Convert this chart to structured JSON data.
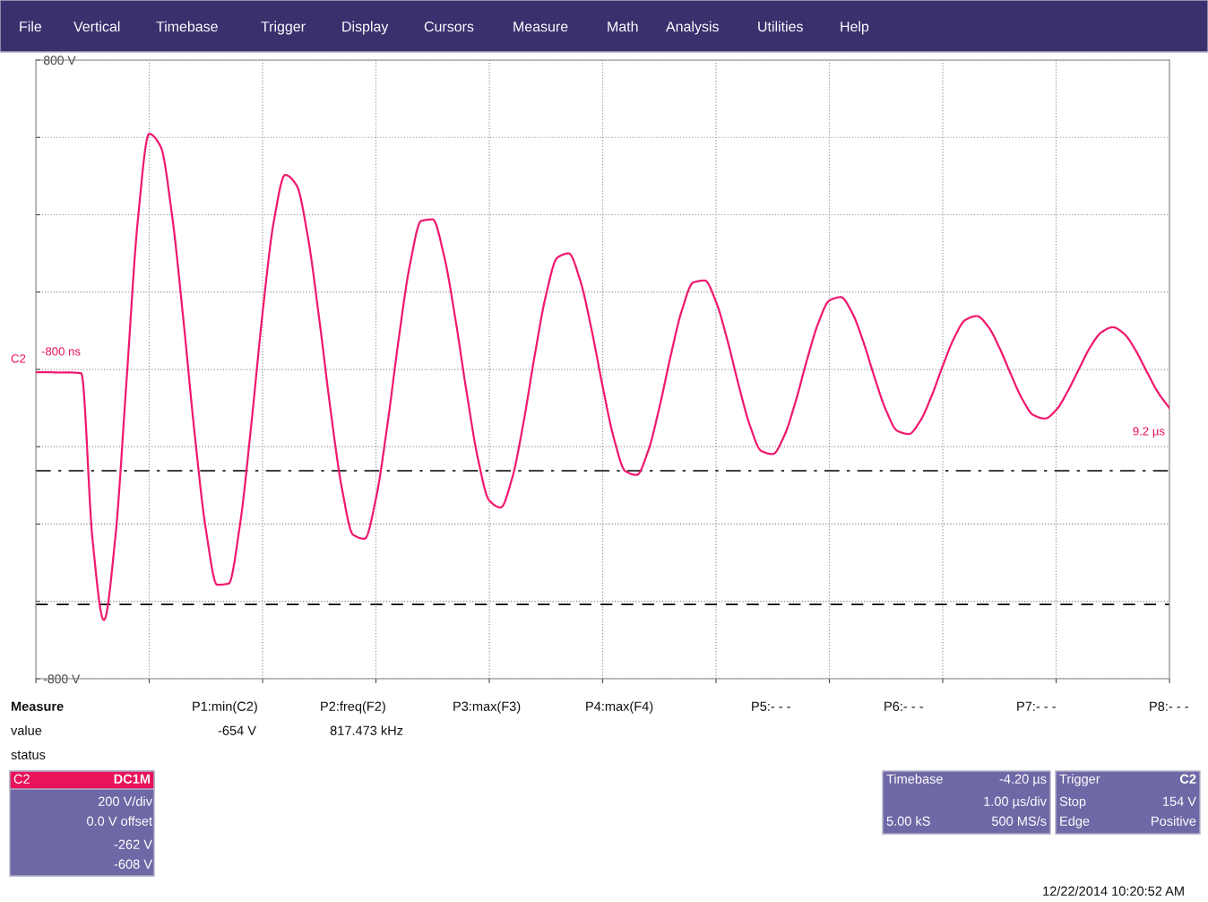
{
  "chart_data": {
    "type": "line",
    "categories": [
      null,
      null,
      null,
      null,
      null,
      null,
      null,
      null,
      null,
      null,
      null,
      null,
      null,
      null,
      null,
      null,
      null,
      null,
      null,
      null,
      null,
      null,
      null,
      null,
      null,
      null,
      null,
      null,
      null,
      null,
      null,
      null,
      null,
      null,
      null,
      null,
      null,
      null,
      null,
      null,
      null,
      null,
      null,
      null,
      null,
      null,
      null,
      null,
      null,
      null,
      null,
      null,
      null,
      null,
      null,
      null,
      null,
      null,
      null,
      null,
      null,
      null,
      null,
      null,
      null,
      null,
      null,
      null,
      null,
      null,
      null,
      null,
      null,
      null,
      null,
      null,
      null,
      null,
      null,
      null,
      null,
      null,
      null,
      null,
      null,
      null,
      null,
      null,
      null,
      null,
      null,
      null,
      null,
      null,
      null,
      null,
      null,
      null,
      null,
      null,
      null
    ],
    "series": [
      {
        "color": "#f0186e",
        "values": [
          -7,
          -7,
          -8,
          -8,
          -10,
          -440,
          -648,
          -438,
          -29,
          387,
          609,
          577,
          402,
          133,
          -164,
          -414,
          -557,
          -554,
          -403,
          -144,
          146,
          384,
          503,
          476,
          342,
          130,
          -105,
          -308,
          -428,
          -438,
          -334,
          -146,
          77,
          271,
          384,
          388,
          295,
          132,
          -59,
          -231,
          -339,
          -357,
          -283,
          -140,
          35,
          192,
          289,
          300,
          232,
          106,
          -44,
          -179,
          -263,
          -273,
          -212,
          -99,
          35,
          154,
          225,
          230,
          175,
          76,
          -41,
          -146,
          -211,
          -219,
          -173,
          -85,
          22,
          118,
          178,
          187,
          147,
          71,
          -22,
          -106,
          -159,
          -167,
          -134,
          -70,
          9,
          81,
          128,
          138,
          111,
          56,
          -12,
          -76,
          -118,
          -127,
          -105,
          -58,
          0,
          57,
          96,
          109,
          92,
          50,
          -6,
          -60,
          -100
        ]
      }
    ],
    "ylim": [
      -800,
      800
    ],
    "yticks": [
      {
        "value": -800,
        "label": "-800 V"
      },
      {
        "value": -600,
        "label": null
      },
      {
        "value": -400,
        "label": null
      },
      {
        "value": -200,
        "label": null
      },
      {
        "value": 0,
        "label": null
      },
      {
        "value": 200,
        "label": null
      },
      {
        "value": 400,
        "label": null
      },
      {
        "value": 600,
        "label": null
      },
      {
        "value": 800,
        "label": "800 V"
      }
    ],
    "tick_labels": "y",
    "grid": true,
    "ref_lines": [
      {
        "axis": "y",
        "value": -262,
        "color": "#000000",
        "line_style": "dashdot"
      },
      {
        "axis": "y",
        "value": -608,
        "color": "#000000",
        "line_style": "dashed"
      }
    ],
    "annotations": [
      "File",
      "Vertical",
      "Timebase",
      "Trigger",
      "Display",
      "Cursors",
      "Measure",
      "Math",
      "Analysis",
      "Utilities",
      "Help",
      "Measure",
      "value",
      "status",
      "P1:min(C2)",
      "-654 V",
      "P2:freq(F2)",
      "817.473 kHz",
      "P3:max(F3)",
      "P4:max(F4)",
      "P5:- - -",
      "P6:- - -",
      "P7:- - -",
      "P8:- - -",
      "C2",
      "DC1M",
      "200 V/div",
      "0.0 V offset",
      "-262 V",
      "-608 V",
      "Timebase",
      "-4.20 µs",
      "1.00 µs/div",
      "5.00 kS",
      "500 MS/s",
      "Trigger",
      "C2",
      "Stop",
      "154 V",
      "Edge",
      "Positive",
      "12/22/2014 10:20:52 AM",
      "C2",
      "-800 ns",
      "9.2 µs"
    ]
  }
}
